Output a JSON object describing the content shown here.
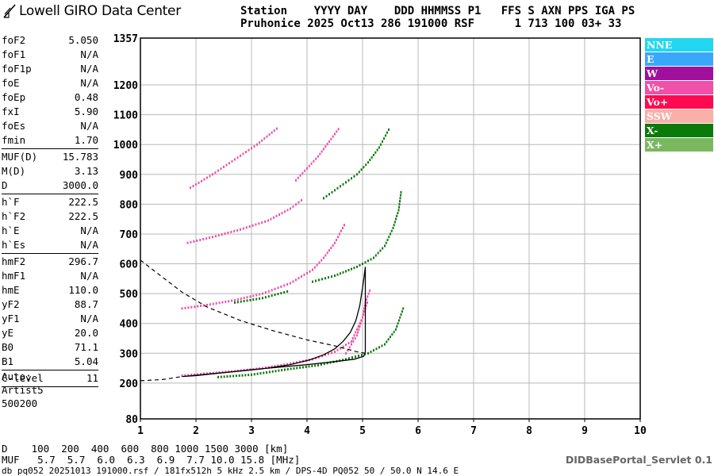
{
  "brand": {
    "text": "Lowell GIRO Data Center"
  },
  "header": {
    "line1": "Station    YYYY DAY    DDD HHMMSS P1   FFS S AXN PPS IGA PS",
    "line2": "Pruhonice 2025 Oct13 286 191000 RSF      1 713 100 03+ 33"
  },
  "params": [
    {
      "label": "foF2",
      "value": "5.050"
    },
    {
      "label": "foF1",
      "value": "N/A"
    },
    {
      "label": "foF1p",
      "value": "N/A"
    },
    {
      "label": "foE",
      "value": "N/A"
    },
    {
      "label": "foEp",
      "value": "0.48"
    },
    {
      "label": "fxI",
      "value": "5.90"
    },
    {
      "label": "foEs",
      "value": "N/A"
    },
    {
      "label": "fmin",
      "value": "1.70"
    },
    {
      "sep": true
    },
    {
      "label": "MUF(D)",
      "value": "15.783"
    },
    {
      "label": "M(D)",
      "value": "3.13"
    },
    {
      "label": "D",
      "value": "3000.0"
    },
    {
      "sep": true
    },
    {
      "label": "h`F",
      "value": "222.5"
    },
    {
      "label": "h`F2",
      "value": "222.5"
    },
    {
      "label": "h`E",
      "value": "N/A"
    },
    {
      "label": "h`Es",
      "value": "N/A"
    },
    {
      "sep": true
    },
    {
      "label": "hmF2",
      "value": "296.7"
    },
    {
      "label": "hmF1",
      "value": "N/A"
    },
    {
      "label": "hmE",
      "value": "110.0"
    },
    {
      "label": "yF2",
      "value": "88.7"
    },
    {
      "label": "yF1",
      "value": "N/A"
    },
    {
      "label": "yE",
      "value": "20.0"
    },
    {
      "label": "B0",
      "value": "71.1"
    },
    {
      "label": "B1",
      "value": "5.04"
    },
    {
      "sep": true
    },
    {
      "label": "C-level",
      "value": "11"
    },
    {
      "sep": true
    }
  ],
  "auto": [
    "Auto:",
    "Artist5",
    "500200"
  ],
  "legend": [
    {
      "label": "NNE",
      "color": "#22d8f0"
    },
    {
      "label": "E",
      "color": "#3aa8f8"
    },
    {
      "label": "W",
      "color": "#a0109c"
    },
    {
      "label": "Vo-",
      "color": "#f050a8"
    },
    {
      "label": "Vo+",
      "color": "#ff0a50"
    },
    {
      "label": "SSW",
      "color": "#f8b0a8"
    },
    {
      "label": "X-",
      "color": "#0a7a0a"
    },
    {
      "label": "X+",
      "color": "#7ab860"
    }
  ],
  "bottom": {
    "d_row": "D    100  200  400  600  800 1000 1500 3000 [km]",
    "muf_row": "MUF   5.7  5.7  6.0  6.3  6.9  7.7 10.0 15.8 [MHz]"
  },
  "footer": "db pq052 20251013 191000.rsf / 181fx512h 5 kHz 2.5 km / DPS-4D PQ052 50 / 50.0 N 14.6 E",
  "servlet": "DIDBasePortal_Servlet 0.1",
  "chart_data": {
    "type": "scatter",
    "xlim": [
      1,
      10
    ],
    "ylim": [
      80,
      1357
    ],
    "xticks": [
      "1",
      "2",
      "3",
      "4",
      "5",
      "6",
      "7",
      "8",
      "9",
      "10"
    ],
    "yticks": [
      "80",
      "200",
      "300",
      "400",
      "500",
      "600",
      "700",
      "800",
      "900",
      "1000",
      "1100",
      "1200",
      "1357"
    ],
    "grid": true,
    "profile_solid": {
      "x": [
        1.75,
        2.5,
        3.2,
        3.7,
        4.05,
        4.3,
        4.5,
        4.65,
        4.78,
        4.88,
        4.95,
        5.0,
        5.03,
        5.05,
        5.05,
        5.02,
        4.85,
        4.5,
        4.0,
        3.0,
        2.0,
        1.75
      ],
      "y": [
        222,
        235,
        248,
        262,
        278,
        295,
        315,
        340,
        370,
        410,
        460,
        520,
        560,
        590,
        305,
        290,
        280,
        272,
        262,
        245,
        225,
        222
      ]
    },
    "extrapolation_dashed": {
      "x": [
        1.0,
        1.4,
        1.75,
        2.2,
        2.8,
        3.4,
        4.0,
        4.5,
        4.9,
        5.05
      ],
      "y": [
        612,
        555,
        505,
        455,
        410,
        375,
        345,
        325,
        305,
        300
      ]
    },
    "base_dashed": {
      "x": [
        1.0,
        1.4,
        1.75
      ],
      "y": [
        208,
        212,
        222
      ]
    },
    "traces": [
      {
        "name": "Vo-",
        "x": [
          1.75,
          2.2,
          2.7,
          3.2,
          3.7,
          4.1,
          4.5,
          4.8,
          5.0,
          5.1
        ],
        "y": [
          225,
          232,
          240,
          250,
          265,
          280,
          305,
          340,
          420,
          480
        ]
      },
      {
        "name": "Vo-",
        "x": [
          4.7,
          4.8,
          4.9,
          5.0,
          5.05,
          5.15
        ],
        "y": [
          300,
          330,
          360,
          420,
          470,
          520
        ]
      },
      {
        "name": "X-",
        "x": [
          2.4,
          3.0,
          3.6,
          4.2,
          4.7,
          5.1,
          5.4,
          5.6,
          5.75
        ],
        "y": [
          220,
          228,
          245,
          260,
          280,
          300,
          330,
          380,
          460
        ]
      },
      {
        "name": "Vo-",
        "x": [
          1.75,
          2.2,
          2.7,
          3.2,
          3.7,
          4.1,
          4.3,
          4.5,
          4.7
        ],
        "y": [
          450,
          462,
          478,
          500,
          535,
          580,
          620,
          670,
          740
        ]
      },
      {
        "name": "X-",
        "x": [
          2.7,
          3.2,
          3.7
        ],
        "y": [
          470,
          485,
          510
        ]
      },
      {
        "name": "X-",
        "x": [
          4.1,
          4.5,
          4.9,
          5.2,
          5.4,
          5.55,
          5.65,
          5.7
        ],
        "y": [
          540,
          560,
          590,
          620,
          660,
          720,
          780,
          850
        ]
      },
      {
        "name": "Vo-",
        "x": [
          1.85,
          2.3,
          2.8,
          3.3,
          3.7,
          3.95
        ],
        "y": [
          670,
          690,
          715,
          745,
          785,
          820
        ]
      },
      {
        "name": "Vo-",
        "x": [
          3.8,
          4.0,
          4.2,
          4.4,
          4.6
        ],
        "y": [
          880,
          920,
          960,
          1010,
          1060
        ]
      },
      {
        "name": "X-",
        "x": [
          4.3,
          4.6,
          4.9,
          5.1,
          5.3,
          5.5
        ],
        "y": [
          820,
          860,
          900,
          940,
          990,
          1060
        ]
      },
      {
        "name": "Vo-",
        "x": [
          1.9,
          2.3,
          2.7,
          3.1,
          3.5
        ],
        "y": [
          855,
          900,
          950,
          1000,
          1060
        ]
      }
    ]
  }
}
